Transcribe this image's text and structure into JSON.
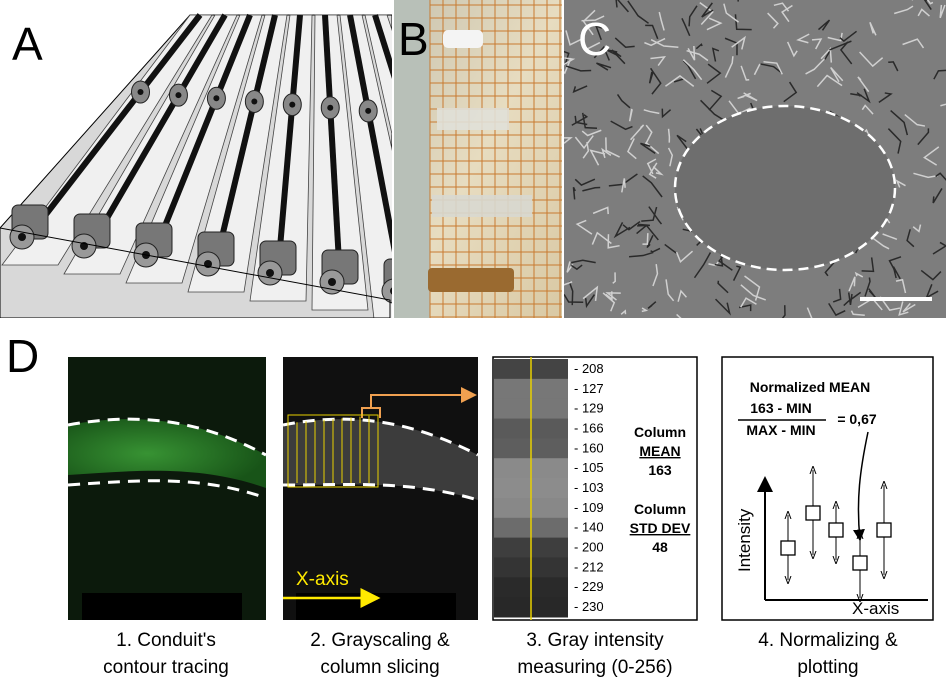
{
  "panels": {
    "a": {
      "label": "A"
    },
    "b": {
      "label": "B"
    },
    "c": {
      "label": "C"
    },
    "d": {
      "label": "D"
    }
  },
  "steps": [
    {
      "caption": [
        "1. Conduit's",
        "contour tracing"
      ]
    },
    {
      "caption": [
        "2. Grayscaling &",
        "column slicing"
      ],
      "axis_label": "X-axis"
    },
    {
      "caption": [
        "3. Gray intensity",
        "measuring (0-256)"
      ]
    },
    {
      "caption": [
        "4. Normalizing &",
        "plotting"
      ]
    }
  ],
  "intensity": {
    "values": [
      "- 208",
      "- 127",
      "- 129",
      "- 166",
      "- 160",
      "- 105",
      "- 103",
      "- 109",
      "- 140",
      "- 200",
      "- 212",
      "- 229",
      "- 230"
    ],
    "mean_title": "Column",
    "mean_label": "MEAN",
    "mean_value": 163,
    "sd_title": "Column",
    "sd_label": "STD DEV",
    "sd_value": 48
  },
  "normalize": {
    "title": "Normalized MEAN",
    "numerator": "163 - MIN",
    "denominator": "MAX - MIN",
    "result": "= 0,67",
    "y_axis": "Intensity",
    "x_axis": "X-axis"
  }
}
